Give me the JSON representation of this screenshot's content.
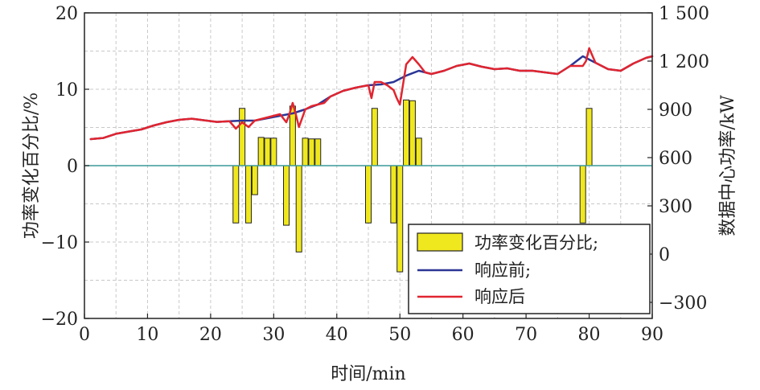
{
  "chart_data": {
    "type": "bar+line",
    "xlabel": "时间/min",
    "ylabel_left": "功率变化百分比/%",
    "ylabel_right": "数据中心功率/kW",
    "xlim": [
      0,
      90
    ],
    "ylim_left": [
      -20,
      20
    ],
    "ylim_right": [
      -400,
      1500
    ],
    "x_ticks": [
      0,
      10,
      20,
      30,
      40,
      50,
      60,
      70,
      80,
      90
    ],
    "x_tick_labels": [
      "0",
      "10",
      "20",
      "30",
      "40",
      "50",
      "60",
      "70",
      "80",
      "90"
    ],
    "y_left_ticks": [
      -20,
      -10,
      0,
      10,
      20
    ],
    "y_left_tick_labels": [
      "−20",
      "−10",
      "0",
      "10",
      "20"
    ],
    "y_right_ticks": [
      -300,
      0,
      300,
      600,
      900,
      1200,
      1500
    ],
    "y_right_tick_labels": [
      "−300",
      "0",
      "300",
      "600",
      "900",
      "1 200",
      "1 500"
    ],
    "grid": true,
    "legend_position": "bottom-right",
    "legend": [
      "功率变化百分比;",
      "响应前;",
      "响应后"
    ],
    "colors": {
      "bars": "#f0e81e",
      "before": "#2b3595",
      "after": "#e02530",
      "zero_line": "#3a9a9a",
      "grid": "#c8c8c8"
    },
    "bars": {
      "name": "功率变化百分比;",
      "x": [
        24,
        25,
        26,
        27,
        28,
        29,
        30,
        32,
        33,
        34,
        35,
        36,
        37,
        45,
        46,
        49,
        50,
        51,
        52,
        53,
        79,
        80
      ],
      "values": [
        -7.5,
        7.5,
        -7.5,
        -3.8,
        3.7,
        3.6,
        3.6,
        -7.8,
        7.8,
        -11.3,
        3.6,
        3.5,
        3.5,
        -7.5,
        7.5,
        -7.5,
        -13.9,
        8.6,
        8.5,
        3.6,
        -7.5,
        7.5
      ]
    },
    "series": [
      {
        "name": "响应前;",
        "x": [
          1,
          3,
          5,
          7,
          9,
          11,
          13,
          15,
          17,
          19,
          21,
          23,
          25,
          27,
          29,
          31,
          33,
          35,
          37,
          39,
          41,
          43,
          45,
          47,
          49,
          51,
          53,
          55,
          57,
          59,
          61,
          63,
          65,
          67,
          69,
          71,
          73,
          75,
          77,
          79,
          81,
          83,
          85,
          87,
          89,
          90
        ],
        "values": [
          715,
          722,
          748,
          762,
          775,
          800,
          820,
          835,
          842,
          832,
          822,
          826,
          830,
          830,
          845,
          860,
          875,
          900,
          930,
          980,
          1015,
          1035,
          1050,
          1055,
          1070,
          1110,
          1140,
          1120,
          1140,
          1170,
          1185,
          1165,
          1150,
          1155,
          1140,
          1140,
          1130,
          1120,
          1170,
          1230,
          1190,
          1150,
          1140,
          1185,
          1220,
          1230
        ]
      },
      {
        "name": "响应后",
        "x": [
          1,
          3,
          5,
          7,
          9,
          11,
          13,
          15,
          17,
          19,
          21,
          23,
          24,
          25,
          26,
          27,
          28,
          29,
          30,
          31,
          32,
          32.5,
          33,
          33.5,
          34,
          35,
          36,
          37,
          38,
          39,
          41,
          43,
          45,
          45.5,
          46,
          47,
          48,
          49,
          49.5,
          50,
          51,
          52,
          53,
          54,
          55,
          57,
          59,
          61,
          63,
          65,
          67,
          69,
          71,
          73,
          75,
          77,
          79,
          79.5,
          80,
          81,
          83,
          85,
          87,
          89,
          90
        ],
        "values": [
          715,
          722,
          748,
          762,
          775,
          800,
          820,
          835,
          842,
          832,
          822,
          826,
          780,
          820,
          790,
          830,
          840,
          850,
          860,
          870,
          820,
          870,
          940,
          870,
          790,
          900,
          920,
          930,
          940,
          980,
          1015,
          1035,
          1050,
          970,
          1070,
          1070,
          1050,
          1020,
          970,
          930,
          1180,
          1225,
          1180,
          1130,
          1120,
          1140,
          1170,
          1185,
          1165,
          1150,
          1155,
          1140,
          1140,
          1130,
          1120,
          1170,
          1170,
          1200,
          1280,
          1190,
          1150,
          1140,
          1185,
          1220,
          1230
        ]
      }
    ]
  }
}
